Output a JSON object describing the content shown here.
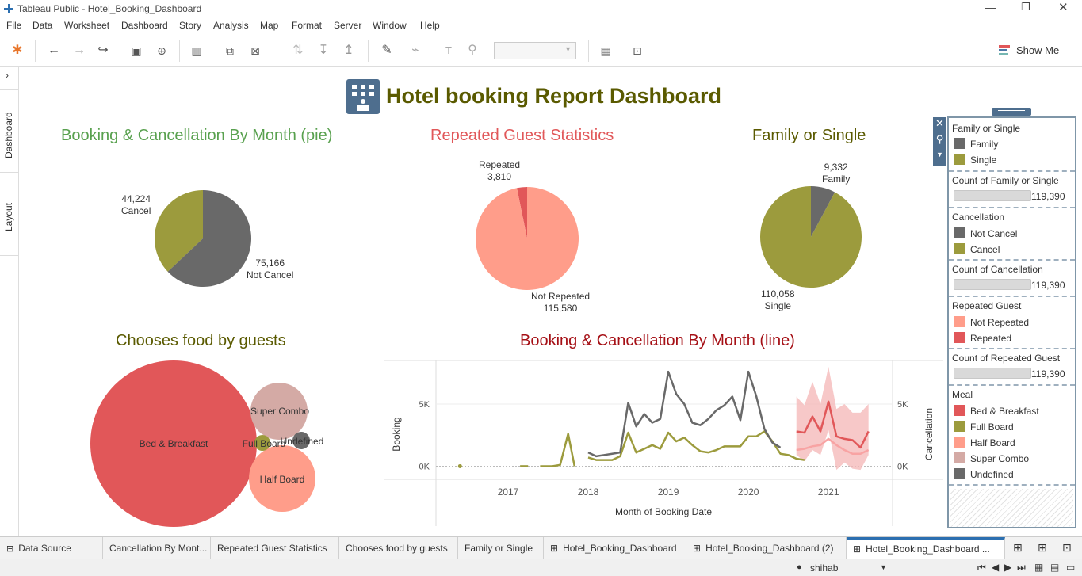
{
  "window": {
    "title": "Tableau Public - Hotel_Booking_Dashboard"
  },
  "menu": [
    "File",
    "Data",
    "Worksheet",
    "Dashboard",
    "Story",
    "Analysis",
    "Map",
    "Format",
    "Server",
    "Window",
    "Help"
  ],
  "toolbar": {
    "show_me": "Show Me"
  },
  "side_tabs": {
    "dashboard": "Dashboard",
    "layout": "Layout"
  },
  "dashboard": {
    "title": "Hotel booking Report Dashboard",
    "charts": {
      "pie1": {
        "title": "Booking & Cancellation By Month (pie)"
      },
      "pie2": {
        "title": "Repeated Guest Statistics"
      },
      "pie3": {
        "title": "Family or Single"
      },
      "bubble": {
        "title": "Chooses food by guests"
      },
      "line": {
        "title": "Booking & Cancellation By Month (line)"
      }
    }
  },
  "chart_data": [
    {
      "type": "pie",
      "title": "Booking & Cancellation By Month (pie)",
      "slices": [
        {
          "label": "Cancel",
          "value": 44224,
          "value_text": "44,224",
          "color": "#9c9b3d"
        },
        {
          "label": "Not Cancel",
          "value": 75166,
          "value_text": "75,166",
          "color": "#696969"
        }
      ]
    },
    {
      "type": "pie",
      "title": "Repeated Guest Statistics",
      "slices": [
        {
          "label": "Repeated",
          "value": 3810,
          "value_text": "3,810",
          "color": "#e15759"
        },
        {
          "label": "Not Repeated",
          "value": 115580,
          "value_text": "115,580",
          "color": "#ff9d8a"
        }
      ]
    },
    {
      "type": "pie",
      "title": "Family or Single",
      "slices": [
        {
          "label": "Family",
          "value": 9332,
          "value_text": "9,332",
          "color": "#696969"
        },
        {
          "label": "Single",
          "value": 110058,
          "value_text": "110,058",
          "color": "#9c9b3d"
        }
      ]
    },
    {
      "type": "bubble",
      "title": "Chooses food by guests",
      "items": [
        {
          "label": "Bed & Breakfast",
          "color": "#e15759"
        },
        {
          "label": "Super Combo",
          "color": "#d4aaa5"
        },
        {
          "label": "Half Board",
          "color": "#ff9d8a"
        },
        {
          "label": "Full Board",
          "color": "#9c9b3d"
        },
        {
          "label": "Undefined",
          "color": "#696969"
        }
      ]
    },
    {
      "type": "line",
      "title": "Booking & Cancellation By Month (line)",
      "xlabel": "Month of Booking Date",
      "ylabel_left": "Booking",
      "ylabel_right": "Cancellation",
      "x_ticks": [
        "2017",
        "2018",
        "2019",
        "2020",
        "2021"
      ],
      "y_ticks_left": [
        "5K",
        "0K"
      ],
      "y_ticks_right": [
        "5K",
        "0K"
      ],
      "ylim": [
        -800,
        8500
      ],
      "xlim": [
        2016.1,
        2021.8
      ],
      "series": [
        {
          "color": "#9c9b3d",
          "segments": [
            [
              [
                2016.4,
                0
              ],
              [
                2016.41,
                0
              ]
            ],
            [
              [
                2017.15,
                0
              ],
              [
                2017.25,
                0
              ]
            ],
            [
              [
                2017.4,
                0
              ],
              [
                2017.55,
                0
              ],
              [
                2017.65,
                100
              ],
              [
                2017.75,
                2600
              ],
              [
                2017.83,
                0
              ]
            ],
            [
              [
                2018.0,
                700
              ],
              [
                2018.1,
                500
              ],
              [
                2018.2,
                500
              ],
              [
                2018.3,
                500
              ],
              [
                2018.4,
                800
              ],
              [
                2018.5,
                2700
              ],
              [
                2018.6,
                1100
              ],
              [
                2018.7,
                1400
              ],
              [
                2018.8,
                1700
              ],
              [
                2018.9,
                1400
              ],
              [
                2019.0,
                2700
              ],
              [
                2019.1,
                2000
              ],
              [
                2019.2,
                2300
              ],
              [
                2019.3,
                1700
              ],
              [
                2019.4,
                1200
              ],
              [
                2019.5,
                1100
              ],
              [
                2019.6,
                1300
              ],
              [
                2019.7,
                1600
              ],
              [
                2019.8,
                1600
              ],
              [
                2019.9,
                1600
              ],
              [
                2020.0,
                2400
              ],
              [
                2020.1,
                2400
              ],
              [
                2020.2,
                2800
              ],
              [
                2020.3,
                2000
              ],
              [
                2020.4,
                1000
              ],
              [
                2020.5,
                900
              ],
              [
                2020.6,
                600
              ],
              [
                2020.7,
                500
              ]
            ]
          ]
        },
        {
          "color": "#696969",
          "segments": [
            [
              [
                2018.0,
                1100
              ],
              [
                2018.1,
                800
              ],
              [
                2018.2,
                900
              ],
              [
                2018.3,
                1000
              ],
              [
                2018.4,
                1100
              ],
              [
                2018.5,
                5100
              ],
              [
                2018.6,
                3200
              ],
              [
                2018.7,
                4200
              ],
              [
                2018.8,
                3500
              ],
              [
                2018.9,
                3800
              ],
              [
                2019.0,
                7600
              ],
              [
                2019.1,
                5800
              ],
              [
                2019.2,
                5000
              ],
              [
                2019.3,
                3500
              ],
              [
                2019.4,
                3300
              ],
              [
                2019.5,
                3800
              ],
              [
                2019.6,
                4500
              ],
              [
                2019.7,
                4900
              ],
              [
                2019.8,
                5600
              ],
              [
                2019.9,
                3700
              ],
              [
                2020.0,
                7600
              ],
              [
                2020.1,
                5600
              ],
              [
                2020.2,
                3000
              ],
              [
                2020.3,
                1900
              ],
              [
                2020.4,
                1500
              ]
            ]
          ]
        },
        {
          "color": "#e15759",
          "segments": [
            [
              [
                2020.6,
                2800
              ],
              [
                2020.7,
                2700
              ],
              [
                2020.8,
                4000
              ],
              [
                2020.9,
                2800
              ],
              [
                2021.0,
                5200
              ],
              [
                2021.1,
                2400
              ],
              [
                2021.2,
                2200
              ],
              [
                2021.3,
                2100
              ],
              [
                2021.4,
                1500
              ],
              [
                2021.5,
                2800
              ]
            ]
          ]
        },
        {
          "color": "#f8a3a3",
          "segments": [
            [
              [
                2020.6,
                1300
              ],
              [
                2020.7,
                1400
              ],
              [
                2020.8,
                1600
              ],
              [
                2020.9,
                1700
              ],
              [
                2021.0,
                2200
              ],
              [
                2021.1,
                1700
              ],
              [
                2021.2,
                1300
              ],
              [
                2021.3,
                1000
              ],
              [
                2021.4,
                1000
              ],
              [
                2021.5,
                1300
              ]
            ]
          ]
        }
      ]
    }
  ],
  "legend": {
    "sections": [
      {
        "title": "Family or Single",
        "items": [
          {
            "label": "Family",
            "color": "#696969"
          },
          {
            "label": "Single",
            "color": "#9c9b3d"
          }
        ]
      },
      {
        "title": "Count of Family or Single",
        "value": "119,390"
      },
      {
        "title": "Cancellation",
        "items": [
          {
            "label": "Not Cancel",
            "color": "#696969"
          },
          {
            "label": "Cancel",
            "color": "#9c9b3d"
          }
        ]
      },
      {
        "title": "Count of Cancellation",
        "value": "119,390"
      },
      {
        "title": "Repeated Guest",
        "items": [
          {
            "label": "Not Repeated",
            "color": "#ff9d8a"
          },
          {
            "label": "Repeated",
            "color": "#e15759"
          }
        ]
      },
      {
        "title": "Count of Repeated Guest",
        "value": "119,390"
      },
      {
        "title": "Meal",
        "items": [
          {
            "label": "Bed & Breakfast",
            "color": "#e15759"
          },
          {
            "label": "Full Board",
            "color": "#9c9b3d"
          },
          {
            "label": "Half Board",
            "color": "#ff9d8a"
          },
          {
            "label": "Super Combo",
            "color": "#d4aaa5"
          },
          {
            "label": "Undefined",
            "color": "#696969"
          }
        ]
      }
    ]
  },
  "tabs": [
    {
      "label": "Data Source"
    },
    {
      "label": "Cancellation By Mont..."
    },
    {
      "label": "Repeated Guest Statistics"
    },
    {
      "label": "Chooses food by guests"
    },
    {
      "label": "Family or Single"
    },
    {
      "label": "Hotel_Booking_Dashboard"
    },
    {
      "label": "Hotel_Booking_Dashboard (2)"
    },
    {
      "label": "Hotel_Booking_Dashboard ..."
    }
  ],
  "status": {
    "user": "shihab"
  },
  "colors": {
    "title_dark_olive": "#5a5a00",
    "pie1_title": "#59a14f",
    "pie2_title": "#e15759",
    "line_title": "#a50f15",
    "accent": "#4e6e8e"
  }
}
